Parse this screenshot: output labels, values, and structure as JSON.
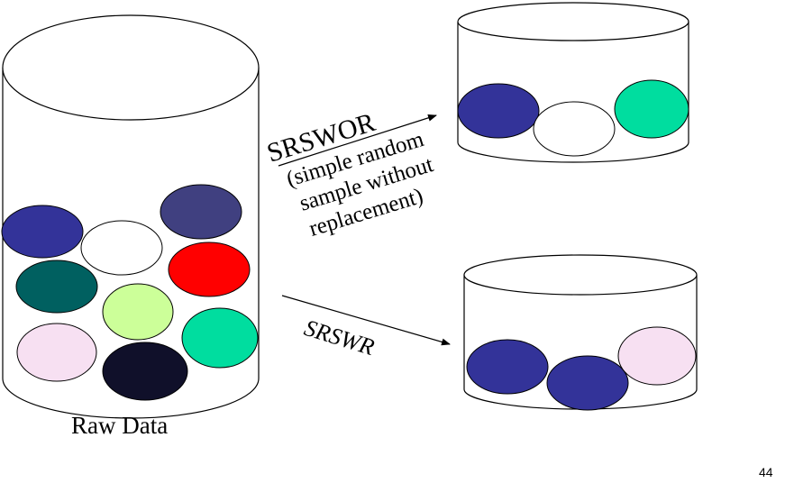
{
  "diagram": {
    "raw_label": "Raw Data",
    "srswor_title": "SRSWOR",
    "srswor_desc": [
      "(simple random",
      "sample without",
      "replacement)"
    ],
    "srswr_title": "SRSWR",
    "page_number": "44"
  },
  "raw_balls": [
    {
      "name": "raw-ball-blue",
      "color": "#333399"
    },
    {
      "name": "raw-ball-white",
      "color": "#ffffff"
    },
    {
      "name": "raw-ball-slate",
      "color": "#404080"
    },
    {
      "name": "raw-ball-teal",
      "color": "#006060"
    },
    {
      "name": "raw-ball-lime",
      "color": "#ccff99"
    },
    {
      "name": "raw-ball-red",
      "color": "#ff0000"
    },
    {
      "name": "raw-ball-pink",
      "color": "#f7e0f2"
    },
    {
      "name": "raw-ball-black",
      "color": "#10102a"
    },
    {
      "name": "raw-ball-green",
      "color": "#00dd9f"
    }
  ],
  "srswor_balls": [
    {
      "name": "srswor-ball-blue",
      "color": "#333399"
    },
    {
      "name": "srswor-ball-white",
      "color": "#ffffff"
    },
    {
      "name": "srswor-ball-green",
      "color": "#00dd9f"
    }
  ],
  "srswr_balls": [
    {
      "name": "srswr-ball-blue-1",
      "color": "#333399"
    },
    {
      "name": "srswr-ball-blue-2",
      "color": "#333399"
    },
    {
      "name": "srswr-ball-pink",
      "color": "#f7e0f2"
    }
  ]
}
